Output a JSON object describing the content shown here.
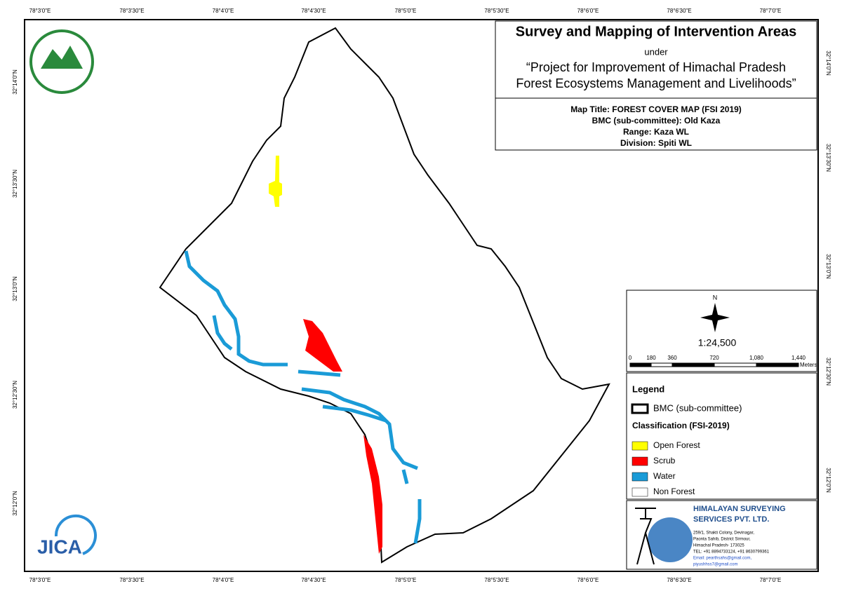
{
  "grid": {
    "lon": [
      "78°3'0\"E",
      "78°3'30\"E",
      "78°4'0\"E",
      "78°4'30\"E",
      "78°5'0\"E",
      "78°5'30\"E",
      "78°6'0\"E",
      "78°6'30\"E",
      "78°7'0\"E"
    ],
    "lat": [
      "32°14'0\"N",
      "32°13'30\"N",
      "32°13'0\"N",
      "32°12'30\"N",
      "32°12'0\"N"
    ]
  },
  "title_block": {
    "title": "Survey and Mapping of Intervention Areas",
    "under": "under",
    "project_line1": "“Project for Improvement of Himachal Pradesh",
    "project_line2": "Forest Ecosystems Management and Livelihoods”",
    "map_title": "Map Title: FOREST COVER MAP (FSI 2019)",
    "bmc": "BMC (sub-committee): Old Kaza",
    "range": "Range: Kaza WL",
    "division": "Division: Spiti WL"
  },
  "scale": {
    "north": "N",
    "ratio": "1:24,500",
    "ticks": [
      "0",
      "180",
      "360",
      "720",
      "1,080",
      "1,440"
    ],
    "unit": "Meters"
  },
  "legend": {
    "title": "Legend",
    "boundary": "BMC (sub-committee)",
    "classification": "Classification (FSI-2019)",
    "items": [
      {
        "label": "Open Forest",
        "color": "#ffff00"
      },
      {
        "label": "Scrub",
        "color": "#ff0000"
      },
      {
        "label": "Water",
        "color": "#1a9bd7"
      },
      {
        "label": "Non Forest",
        "color": "#ffffff"
      }
    ]
  },
  "company": {
    "name1": "HIMALAYAN SURVEYING",
    "name2": "SERVICES PVT. LTD.",
    "address": [
      "259/1, Shakti Colony, Devinagar,",
      "Paonta Sahib, District Sirmour,",
      "Himachal Pradesh- 173025",
      "TEL: +91 8894733124, +91 8630799361",
      "Email: pearthsahs@gmail.com,",
      "piyushhss7@gmail.com"
    ]
  },
  "logo": {
    "jica": "JICA"
  }
}
